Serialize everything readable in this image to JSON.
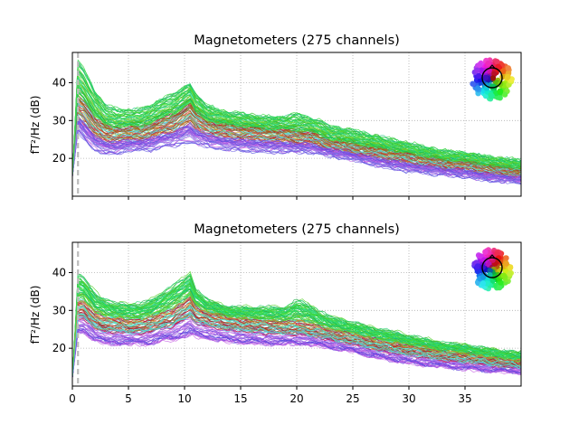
{
  "chart_data": [
    {
      "type": "line",
      "title": "Magnetometers (275 channels)",
      "xlabel": "",
      "ylabel": "fT²/Hz (dB)",
      "xlim": [
        0,
        40
      ],
      "ylim": [
        10,
        48
      ],
      "x_ticks": [
        0,
        5,
        10,
        15,
        20,
        25,
        30,
        35
      ],
      "x_tick_labels_visible": false,
      "y_ticks": [
        20,
        30,
        40
      ],
      "grid": true,
      "vline_x": 0.5,
      "series_count": 275,
      "envelope": {
        "x": [
          0.5,
          1,
          2,
          3,
          4,
          5,
          6,
          7,
          8,
          9,
          10,
          10.5,
          11,
          12,
          13,
          14,
          15,
          17,
          19,
          20,
          21,
          22,
          23,
          25,
          27,
          30,
          33,
          35,
          37,
          39.9
        ],
        "median": [
          34,
          33,
          29,
          27,
          27,
          27,
          27,
          28,
          29,
          30,
          32,
          33,
          31,
          29,
          28,
          28,
          27.5,
          27,
          26.5,
          26,
          26,
          25,
          24,
          23,
          22,
          20.5,
          19,
          18.5,
          17.5,
          16.5
        ],
        "upper": [
          46,
          44,
          38,
          34,
          33,
          33,
          33,
          34,
          36,
          37,
          39,
          40,
          37,
          34,
          33,
          32,
          32,
          31,
          31,
          32,
          31,
          30,
          28.5,
          27.5,
          26,
          24,
          22,
          21.5,
          20.5,
          19.5
        ],
        "lower": [
          27,
          25,
          22,
          21,
          21,
          22,
          22,
          22,
          23,
          23,
          24,
          24,
          23.5,
          23,
          22.5,
          22,
          22,
          21.5,
          21.5,
          21.5,
          21.5,
          21,
          20.5,
          19.5,
          18,
          16.5,
          15.5,
          15,
          14,
          13.5
        ]
      }
    },
    {
      "type": "line",
      "title": "Magnetometers (275 channels)",
      "xlabel": "",
      "ylabel": "fT²/Hz (dB)",
      "xlim": [
        0,
        40
      ],
      "ylim": [
        10,
        48
      ],
      "x_ticks": [
        0,
        5,
        10,
        15,
        20,
        25,
        30,
        35
      ],
      "x_tick_labels": [
        "0",
        "5",
        "10",
        "15",
        "20",
        "25",
        "30",
        "35"
      ],
      "y_ticks": [
        20,
        30,
        40
      ],
      "grid": true,
      "vline_x": 0.5,
      "series_count": 275,
      "envelope": {
        "x": [
          0.5,
          1,
          2,
          3,
          4,
          5,
          6,
          7,
          8,
          9,
          10,
          10.5,
          11,
          12,
          13,
          14,
          15,
          17,
          19,
          20,
          21,
          22,
          23,
          25,
          27,
          30,
          33,
          35,
          37,
          39.9
        ],
        "median": [
          31,
          31,
          28,
          27,
          27,
          26.5,
          26.5,
          27,
          28,
          29,
          31,
          32,
          30,
          28.5,
          28,
          27.5,
          27,
          26.5,
          26,
          26,
          25.5,
          25,
          24,
          23,
          21.5,
          20,
          18.5,
          18,
          17,
          16
        ],
        "upper": [
          40,
          39,
          35,
          33,
          32,
          32,
          32,
          33,
          35,
          37,
          39,
          40,
          36,
          33,
          32,
          31,
          31,
          31,
          31,
          33,
          32,
          30,
          28.5,
          27,
          25.5,
          23.5,
          21.5,
          21,
          20,
          19
        ],
        "lower": [
          24,
          24,
          22,
          21,
          21,
          21,
          21,
          21,
          22,
          22,
          23,
          23.5,
          23,
          22.5,
          22,
          21.5,
          21.5,
          21,
          21,
          21,
          21,
          20.5,
          20,
          19,
          17.5,
          16,
          15,
          14.5,
          14,
          13.5
        ]
      }
    }
  ],
  "colors": {
    "grid": "#b0b0b0",
    "vline": "#bbbbbb",
    "topomap_outline": "#000000"
  }
}
